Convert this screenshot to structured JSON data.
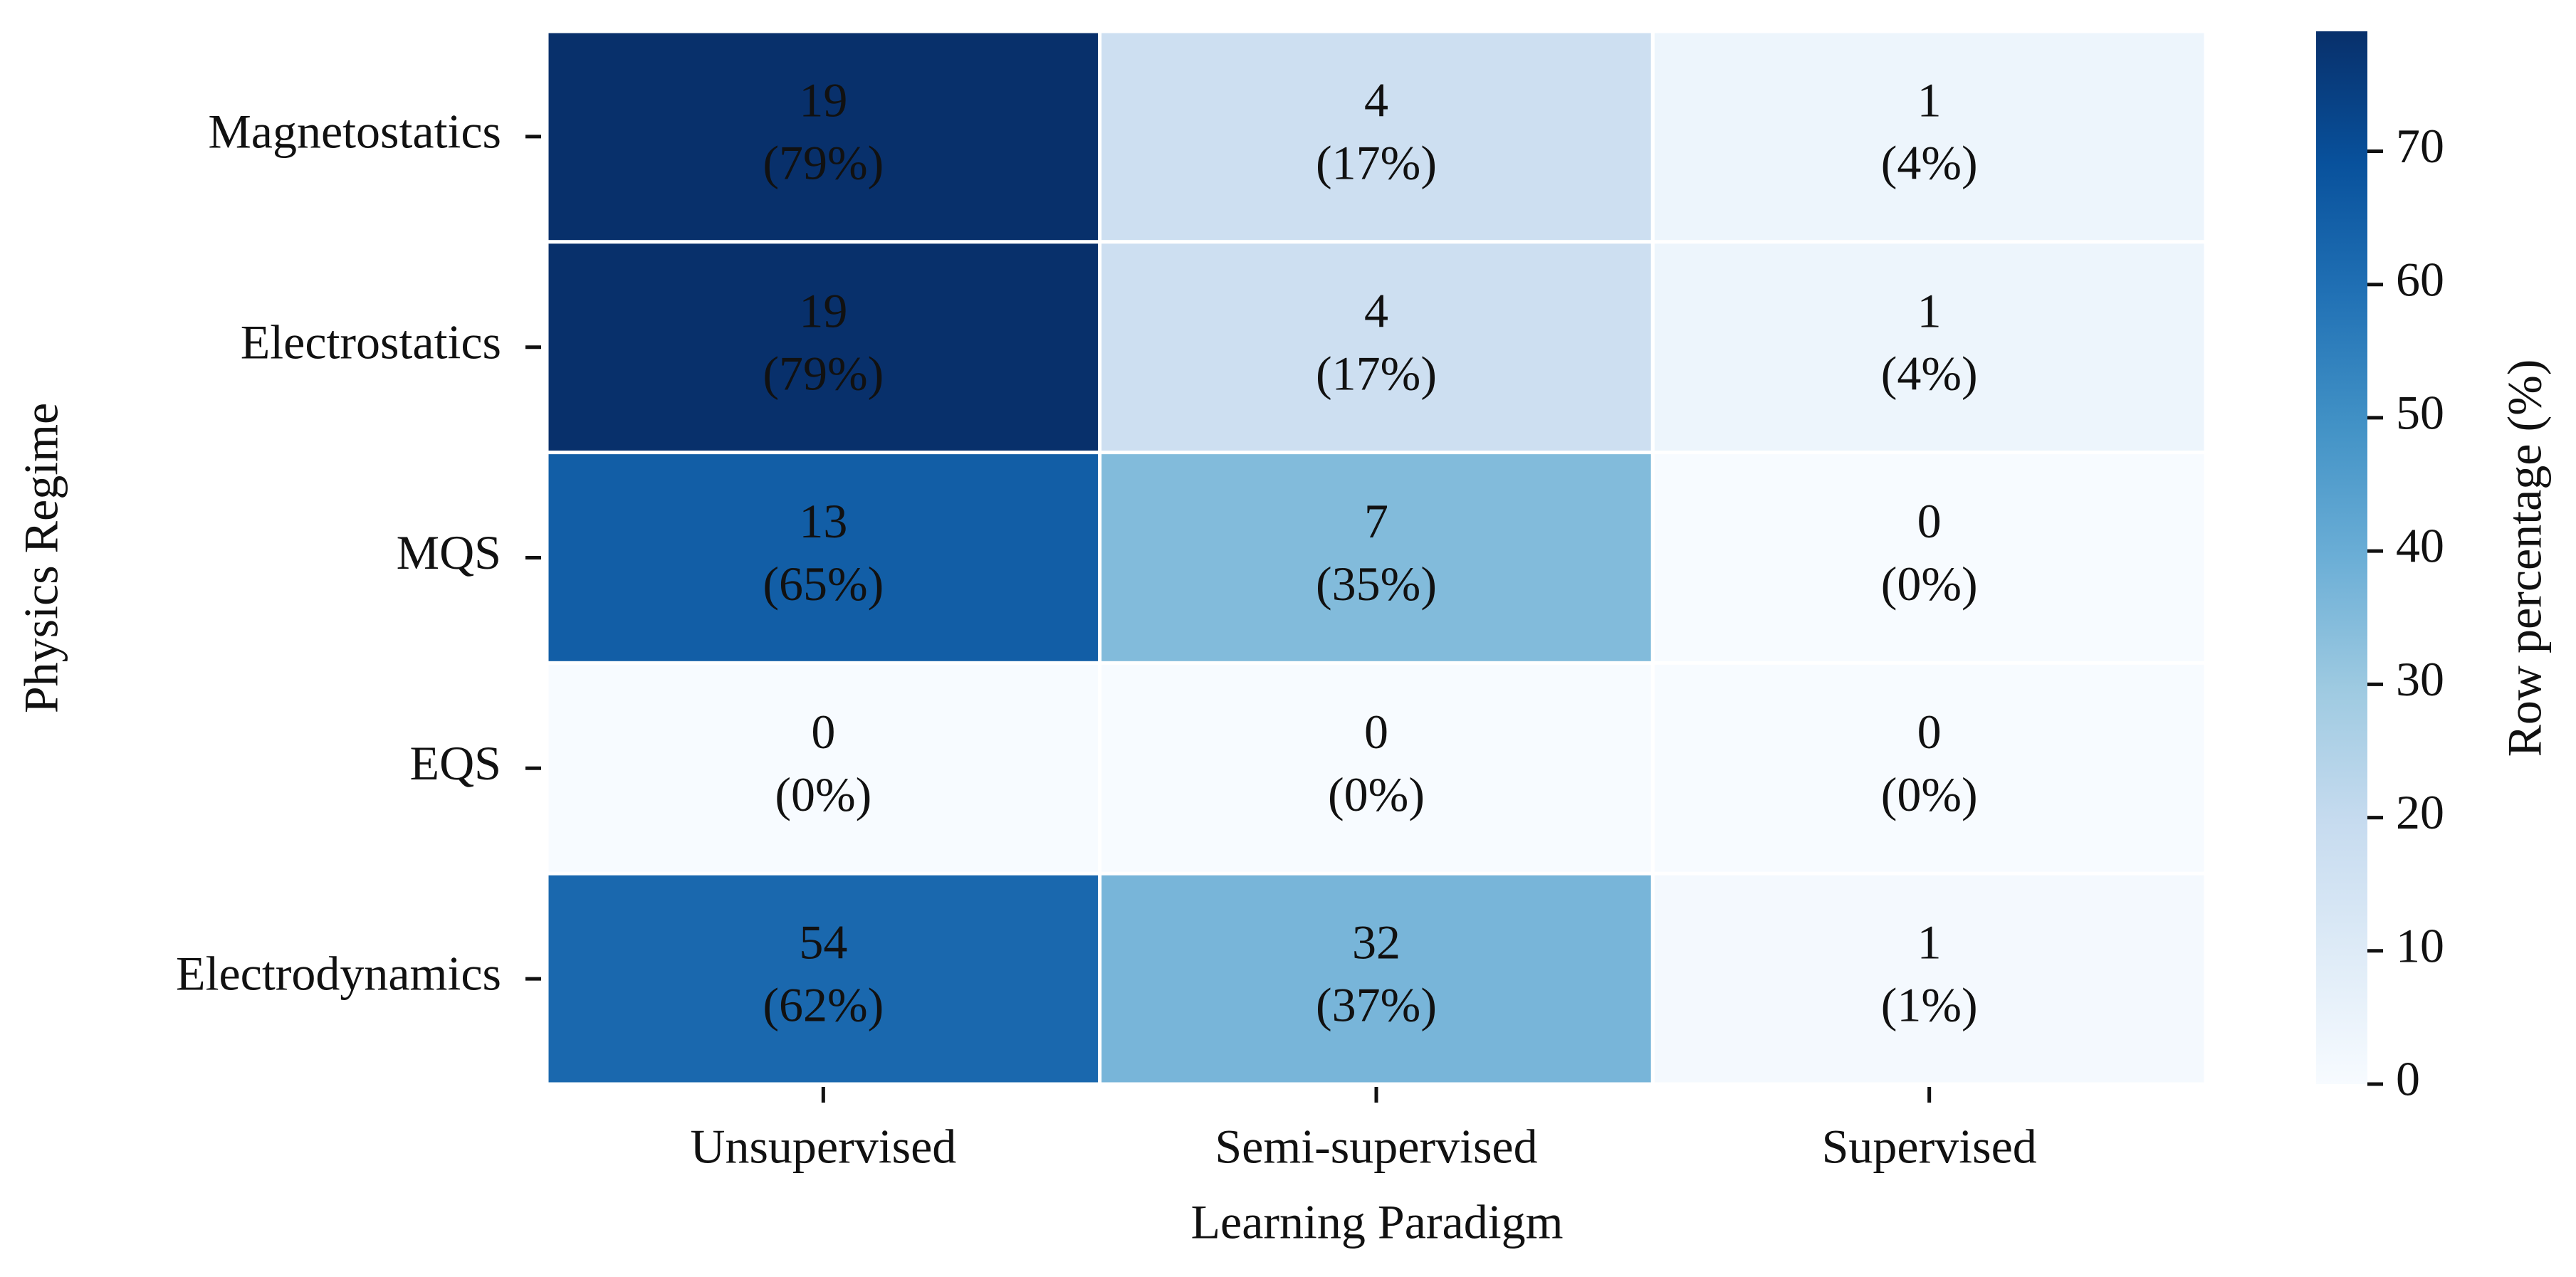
{
  "chart_data": {
    "type": "heatmap",
    "x_label": "Learning Paradigm",
    "y_label": "Physics Regime",
    "categories": [
      "Unsupervised",
      "Semi-supervised",
      "Supervised"
    ],
    "rows": [
      "Magnetostatics",
      "Electrostatics",
      "MQS",
      "EQS",
      "Electrodynamics"
    ],
    "counts": [
      [
        19,
        4,
        1
      ],
      [
        19,
        4,
        1
      ],
      [
        13,
        7,
        0
      ],
      [
        0,
        0,
        0
      ],
      [
        54,
        32,
        1
      ]
    ],
    "values": [
      [
        79,
        17,
        4
      ],
      [
        79,
        17,
        4
      ],
      [
        65,
        35,
        0
      ],
      [
        0,
        0,
        0
      ],
      [
        62,
        37,
        1
      ]
    ],
    "value_labels": [
      [
        "(79%)",
        "(17%)",
        "(4%)"
      ],
      [
        "(79%)",
        "(17%)",
        "(4%)"
      ],
      [
        "(65%)",
        "(35%)",
        "(0%)"
      ],
      [
        "(0%)",
        "(0%)",
        "(0%)"
      ],
      [
        "(62%)",
        "(37%)",
        "(1%)"
      ]
    ],
    "colormap": "Blues",
    "colorbar": {
      "label": "Row percentage (%)",
      "lim": [
        0,
        79
      ],
      "ticks": [
        0,
        10,
        20,
        30,
        40,
        50,
        60,
        70
      ]
    }
  }
}
